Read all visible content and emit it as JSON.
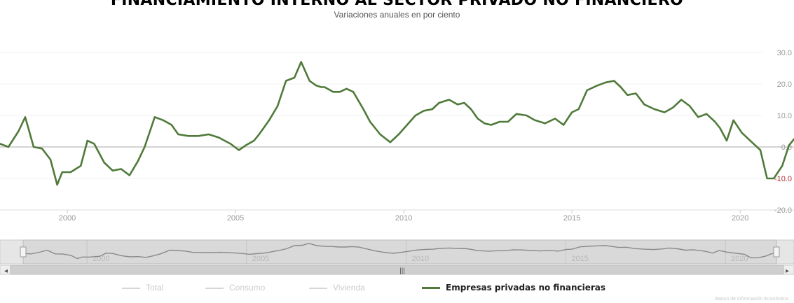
{
  "chart_data": {
    "type": "line",
    "title": "FINANCIAMIENTO INTERNO AL SECTOR PRIVADO NO FINANCIERO",
    "subtitle": "Variaciones anuales en por ciento",
    "x_ticks": [
      "2000",
      "2005",
      "2010",
      "2015",
      "2020"
    ],
    "y_ticks": [
      "30.0",
      "20.0",
      "10.0",
      "0.0",
      "-10.0",
      "-20.0"
    ],
    "ylim": [
      -20,
      30
    ],
    "xlim": [
      1998.0,
      2021.6
    ],
    "grid": true,
    "legend_position": "bottom",
    "legend": [
      {
        "name": "Total",
        "color": "#d6d6d6",
        "active": false
      },
      {
        "name": "Consumo",
        "color": "#d6d6d6",
        "active": false
      },
      {
        "name": "Vivienda",
        "color": "#d6d6d6",
        "active": false
      },
      {
        "name": "Empresas privadas no financieras",
        "color": "#4f7a3a",
        "active": true
      }
    ],
    "series": [
      {
        "name": "Empresas privadas no financieras",
        "color": "#4f7a3a",
        "x": [
          1998.0,
          1998.25,
          1998.55,
          1998.75,
          1999.0,
          1999.25,
          1999.5,
          1999.7,
          1999.85,
          2000.1,
          2000.4,
          2000.6,
          2000.8,
          2001.1,
          2001.35,
          2001.6,
          2001.85,
          2002.1,
          2002.3,
          2002.6,
          2002.85,
          2003.1,
          2003.3,
          2003.6,
          2003.9,
          2004.2,
          2004.5,
          2004.85,
          2005.1,
          2005.3,
          2005.55,
          2005.7,
          2006.0,
          2006.25,
          2006.5,
          2006.75,
          2006.95,
          2007.2,
          2007.4,
          2007.55,
          2007.65,
          2007.9,
          2008.1,
          2008.3,
          2008.5,
          2008.8,
          2009.0,
          2009.3,
          2009.6,
          2009.85,
          2010.1,
          2010.35,
          2010.6,
          2010.85,
          2011.05,
          2011.35,
          2011.6,
          2011.8,
          2012.0,
          2012.2,
          2012.4,
          2012.6,
          2012.85,
          2013.1,
          2013.35,
          2013.65,
          2013.9,
          2014.2,
          2014.5,
          2014.75,
          2015.0,
          2015.2,
          2015.45,
          2015.75,
          2016.0,
          2016.25,
          2016.45,
          2016.65,
          2016.9,
          2017.15,
          2017.45,
          2017.75,
          2018.0,
          2018.25,
          2018.5,
          2018.75,
          2019.0,
          2019.25,
          2019.4,
          2019.6,
          2019.8,
          2020.05,
          2020.35,
          2020.6,
          2020.8,
          2021.0,
          2021.25,
          2021.45,
          2021.6
        ],
        "y": [
          1,
          0,
          5,
          9.5,
          0,
          -0.5,
          -4,
          -12,
          -8,
          -8,
          -6,
          2,
          1,
          -5,
          -7.5,
          -7,
          -9,
          -4.5,
          0,
          9.5,
          8.5,
          7,
          4,
          3.5,
          3.5,
          4,
          3,
          1,
          -1,
          0.5,
          2,
          4,
          8.5,
          13,
          21,
          22,
          27,
          21,
          19.5,
          19,
          19,
          17.5,
          17.5,
          18.5,
          17.5,
          12,
          8,
          4,
          1.5,
          4,
          7,
          10,
          11.5,
          12,
          14,
          15,
          13.5,
          14,
          12,
          9,
          7.5,
          7,
          8,
          8,
          10.5,
          10,
          8.5,
          7.5,
          9,
          7,
          11,
          12,
          18,
          19.5,
          20.5,
          21,
          19,
          16.5,
          17,
          13.5,
          12,
          11,
          12.5,
          15,
          13,
          9.5,
          10.5,
          8,
          6,
          2,
          8.5,
          4.5,
          1.5,
          -1,
          -10,
          -10,
          -6,
          0.5,
          2.5
        ]
      }
    ]
  },
  "navigator": {
    "labels": [
      "2000",
      "2005",
      "2010",
      "2015",
      "2020"
    ],
    "scroll_mark": "|||"
  },
  "credit": "Banco de Información Económica"
}
